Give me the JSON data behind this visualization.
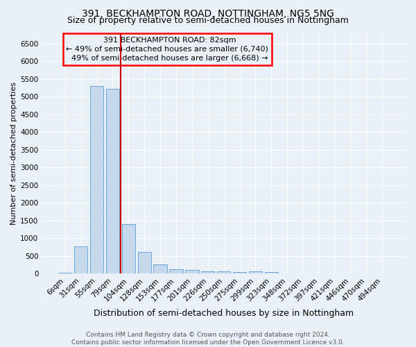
{
  "title": "391, BECKHAMPTON ROAD, NOTTINGHAM, NG5 5NG",
  "subtitle": "Size of property relative to semi-detached houses in Nottingham",
  "xlabel": "Distribution of semi-detached houses by size in Nottingham",
  "ylabel": "Number of semi-detached properties",
  "categories": [
    "6sqm",
    "31sqm",
    "55sqm",
    "79sqm",
    "104sqm",
    "128sqm",
    "153sqm",
    "177sqm",
    "201sqm",
    "226sqm",
    "250sqm",
    "275sqm",
    "299sqm",
    "323sqm",
    "348sqm",
    "372sqm",
    "397sqm",
    "421sqm",
    "446sqm",
    "470sqm",
    "494sqm"
  ],
  "values": [
    30,
    780,
    5300,
    5230,
    1400,
    620,
    255,
    130,
    100,
    60,
    60,
    50,
    60,
    55,
    0,
    0,
    0,
    0,
    0,
    0,
    0
  ],
  "bar_color": "#c6d9ec",
  "bar_edge_color": "#5b9bd5",
  "highlight_bar_index": 3,
  "vline_x": 3.5,
  "vline_color": "#cc0000",
  "property_label": "391 BECKHAMPTON ROAD: 82sqm",
  "smaller_pct": 49,
  "smaller_count": "6,740",
  "larger_pct": 49,
  "larger_count": "6,668",
  "ylim": [
    0,
    6800
  ],
  "yticks": [
    0,
    500,
    1000,
    1500,
    2000,
    2500,
    3000,
    3500,
    4000,
    4500,
    5000,
    5500,
    6000,
    6500
  ],
  "footer": "Contains HM Land Registry data © Crown copyright and database right 2024.\nContains public sector information licensed under the Open Government Licence v3.0.",
  "bg_color": "#eaf0f8",
  "grid_color": "#ffffff",
  "title_fontsize": 10,
  "subtitle_fontsize": 9,
  "xlabel_fontsize": 9,
  "ylabel_fontsize": 8,
  "tick_fontsize": 7.5,
  "footer_fontsize": 6.5,
  "ann_fontsize": 8
}
